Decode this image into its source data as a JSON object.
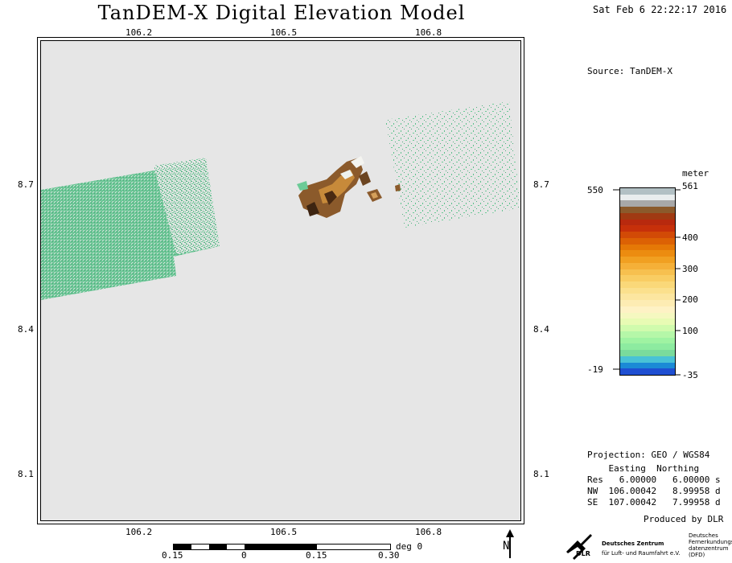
{
  "title": "TanDEM-X Digital Elevation Model",
  "datetime": "Sat Feb  6 22:22:17 2016",
  "source": "Source: TanDEM-X",
  "axes": {
    "x_ticks_top": [
      "106.2",
      "106.5",
      "106.8"
    ],
    "x_ticks_bottom": [
      "106.2",
      "106.5",
      "106.8"
    ],
    "y_ticks_left": [
      "8.7",
      "8.4",
      "8.1"
    ],
    "y_ticks_right": [
      "8.7",
      "8.4",
      "8.1"
    ]
  },
  "legend": {
    "unit": "meter",
    "left_labels": [
      "550",
      "-19"
    ],
    "right_labels": [
      "561",
      "400",
      "300",
      "200",
      "100",
      "-35"
    ],
    "colors": [
      "#b2c0c4",
      "#e9edee",
      "#a8a8a8",
      "#8b5a2b",
      "#a03a12",
      "#b8290e",
      "#c7300a",
      "#d24a06",
      "#dc6104",
      "#e57806",
      "#ec8c10",
      "#f1a021",
      "#f5b038",
      "#f7c04f",
      "#f9cd63",
      "#fad879",
      "#fbe08d",
      "#fce6a0",
      "#fdecb3",
      "#fef2c5",
      "#f5f8c0",
      "#e8fbb4",
      "#d0fbad",
      "#b5f7a8",
      "#9ff3a2",
      "#8deba0",
      "#7adb9c",
      "#49c2d6",
      "#1b8ad6",
      "#1f4fd2"
    ]
  },
  "info": {
    "projection": "Projection: GEO / WGS84",
    "header": "    Easting  Northing",
    "res": "Res   6.00000   6.00000 s",
    "nw": "NW  106.00042   8.99958 d",
    "se": "SE  107.00042   7.99958 d"
  },
  "produced_by": "Produced by DLR",
  "scalebar": {
    "labels": [
      "0.15",
      "0",
      "0.15",
      "0.30"
    ],
    "unit": "deg 0"
  },
  "north_label": "N",
  "logo": {
    "name": "DLR",
    "line1": "Deutsches Zentrum",
    "line2": "für Luft- und Raumfahrt e.V.",
    "right1": "Deutsches",
    "right2": "Fernerkundungs-",
    "right3": "datenzentrum",
    "right4": "(DFD)"
  },
  "colors": {
    "map_background": "#e6e6e6",
    "dem_green": "#5dbd8a",
    "dem_brown": "#8b5a2b"
  }
}
